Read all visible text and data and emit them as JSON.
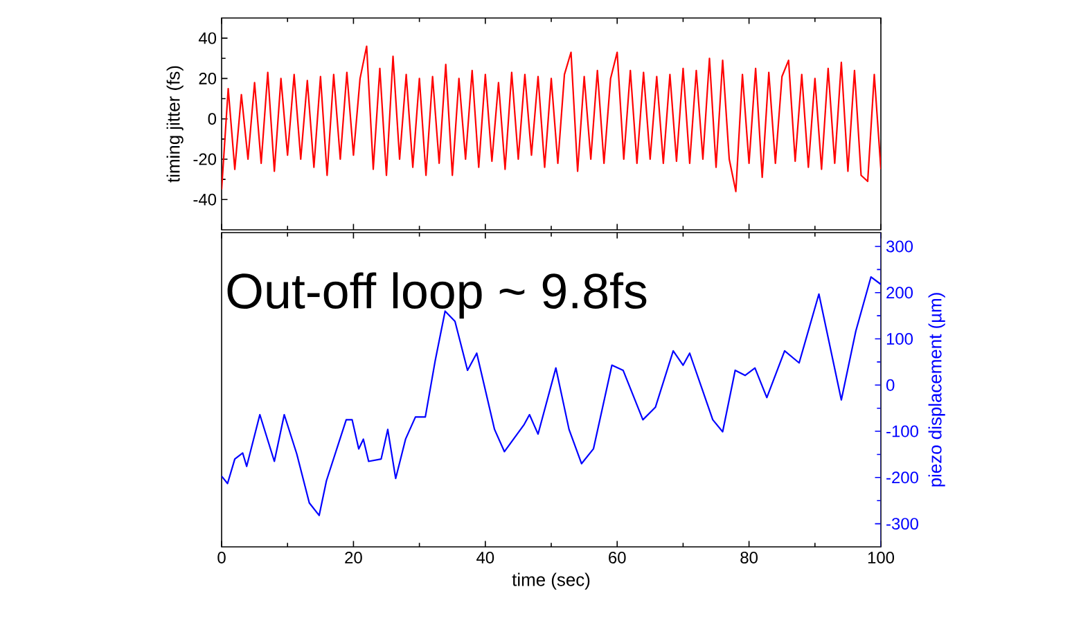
{
  "chart_data": [
    {
      "type": "line",
      "ylabel": "timing jitter (fs)",
      "xlim": [
        0,
        100
      ],
      "xticks": [
        0,
        20,
        40,
        60,
        80,
        100
      ],
      "ylim": [
        -55,
        50
      ],
      "yticks": [
        -40,
        -20,
        0,
        20,
        40
      ],
      "tick_labels": "y",
      "series": [
        {
          "color": "#ff0000",
          "x": [
            0,
            1,
            2,
            3,
            4,
            5,
            6,
            7,
            8,
            9,
            10,
            11,
            12,
            13,
            14,
            15,
            16,
            17,
            18,
            19,
            20,
            21,
            22,
            23,
            24,
            25,
            26,
            27,
            28,
            29,
            30,
            31,
            32,
            33,
            34,
            35,
            36,
            37,
            38,
            39,
            40,
            41,
            42,
            43,
            44,
            45,
            46,
            47,
            48,
            49,
            50,
            51,
            52,
            53,
            54,
            55,
            56,
            57,
            58,
            59,
            60,
            61,
            62,
            63,
            64,
            65,
            66,
            67,
            68,
            69,
            70,
            71,
            72,
            73,
            74,
            75,
            76,
            77,
            78,
            79,
            80,
            81,
            82,
            83,
            84,
            85,
            86,
            87,
            88,
            89,
            90,
            91,
            92,
            93,
            94,
            95,
            96,
            97,
            98,
            99,
            100
          ],
          "values": [
            -35,
            15,
            -25,
            12,
            -20,
            18,
            -22,
            23,
            -26,
            20,
            -18,
            22,
            -20,
            19,
            -24,
            21,
            -28,
            22,
            -20,
            23,
            -18,
            20,
            36,
            -25,
            25,
            -28,
            31,
            -20,
            22,
            -24,
            20,
            -28,
            21,
            -22,
            27,
            -28,
            20,
            -20,
            24,
            -24,
            22,
            -21,
            18,
            -25,
            23,
            -20,
            22,
            -18,
            21,
            -24,
            20,
            -22,
            22,
            33,
            -26,
            21,
            -20,
            24,
            -22,
            20,
            33,
            -20,
            24,
            -22,
            23,
            -20,
            21,
            -22,
            22,
            -21,
            25,
            -22,
            24,
            -20,
            30,
            -24,
            29,
            -20,
            -36,
            22,
            -22,
            25,
            -29,
            23,
            -22,
            21,
            29,
            -21,
            22,
            -24,
            20,
            -25,
            25,
            -22,
            28,
            -26,
            24,
            -28,
            -31,
            22,
            -25
          ]
        }
      ]
    },
    {
      "type": "line",
      "xlabel": "time (sec)",
      "y2label": "piezo displacement (µm)",
      "xlim": [
        0,
        100
      ],
      "xticks": [
        0,
        20,
        40,
        60,
        80,
        100
      ],
      "y2lim": [
        -350,
        330
      ],
      "y2ticks": [
        -300,
        -200,
        -100,
        0,
        100,
        200,
        300
      ],
      "annotations": [
        "Out-off loop ~ 9.8fs"
      ],
      "series": [
        {
          "color": "#0000ff",
          "axis": "y2",
          "x": [
            0,
            0.9,
            2,
            3.2,
            3.8,
            5.8,
            8,
            9.5,
            11.4,
            13.3,
            14.8,
            15.9,
            18.9,
            19.8,
            20.8,
            21.5,
            22.3,
            24.2,
            25.2,
            26.4,
            27.9,
            29.4,
            30.9,
            32.4,
            33.9,
            35.4,
            37.3,
            38.7,
            41.4,
            42.9,
            45.9,
            46.7,
            48,
            50.7,
            52.7,
            54.6,
            56.4,
            59.2,
            60.9,
            63.9,
            65.8,
            68.5,
            70,
            71,
            74.5,
            76,
            77.9,
            79.4,
            80.9,
            82.7,
            85.4,
            87.6,
            90.6,
            94,
            96.2,
            98.5,
            100
          ],
          "values": [
            -197,
            -213,
            -160,
            -147,
            -176,
            -64,
            -165,
            -64,
            -149,
            -255,
            -282,
            -207,
            -75,
            -75,
            -138,
            -117,
            -165,
            -160,
            -96,
            -202,
            -117,
            -69,
            -69,
            53,
            160,
            138,
            32,
            69,
            -96,
            -144,
            -85,
            -64,
            -106,
            37,
            -96,
            -170,
            -138,
            43,
            32,
            -75,
            -48,
            74,
            43,
            69,
            -75,
            -101,
            32,
            21,
            37,
            -27,
            74,
            48,
            197,
            -32,
            117,
            234,
            218
          ]
        }
      ]
    }
  ]
}
